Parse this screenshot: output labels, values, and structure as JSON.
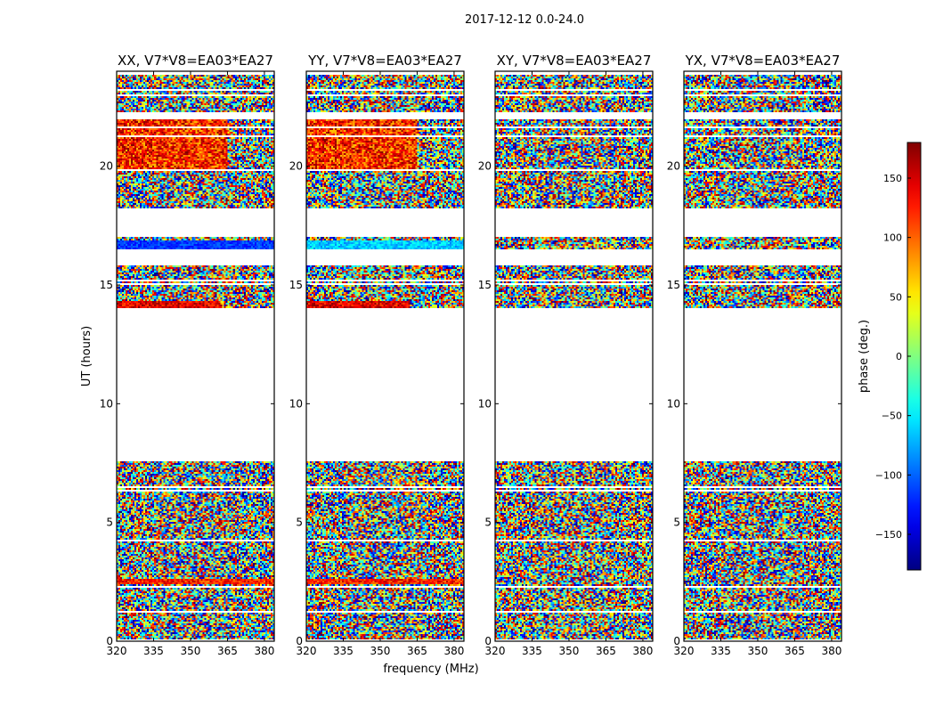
{
  "chart_data": {
    "type": "heatmap",
    "suptitle": "2017-12-12 0.0-24.0",
    "xlabel": "frequency (MHz)",
    "ylabel": "UT (hours)",
    "xlim": [
      320,
      384
    ],
    "ylim": [
      0,
      24
    ],
    "xticks": [
      320,
      335,
      350,
      365,
      380
    ],
    "yticks": [
      0,
      5,
      10,
      15,
      20
    ],
    "panels": [
      {
        "title": "XX, V7*V8=EA03*EA27",
        "polarization": "XX"
      },
      {
        "title": "YY, V7*V8=EA03*EA27",
        "polarization": "YY"
      },
      {
        "title": "XY, V7*V8=EA03*EA27",
        "polarization": "XY"
      },
      {
        "title": "YX, V7*V8=EA03*EA27",
        "polarization": "YX"
      }
    ],
    "data_time_ranges_hours": [
      [
        0.0,
        7.6
      ],
      [
        14.0,
        15.8
      ],
      [
        16.5,
        17.0
      ],
      [
        18.2,
        19.8
      ],
      [
        19.9,
        22.0
      ],
      [
        22.3,
        24.0
      ]
    ],
    "colorbar": {
      "label": "phase (deg.)",
      "range": [
        -180,
        180
      ],
      "ticks": [
        -150,
        -100,
        -50,
        0,
        50,
        100,
        150
      ],
      "tick_labels": [
        "−150",
        "−100",
        "−50",
        "0",
        "50",
        "100",
        "150"
      ],
      "colormap": "jet"
    }
  }
}
